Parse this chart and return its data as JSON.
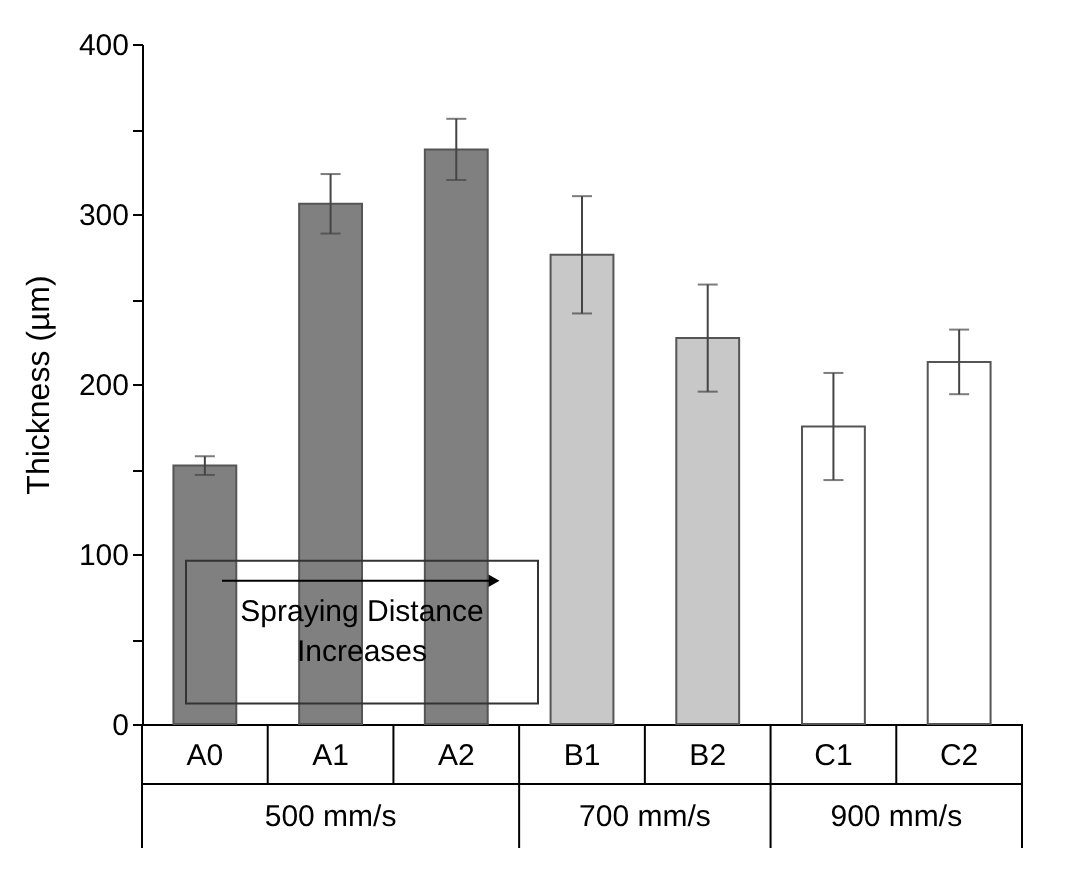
{
  "chart_data": {
    "type": "bar",
    "ylabel": "Thickness (µm)",
    "categories": [
      "A0",
      "A1",
      "A2",
      "B1",
      "B2",
      "C1",
      "C2"
    ],
    "values": [
      152,
      306,
      338,
      276,
      227,
      175,
      213
    ],
    "errors": [
      5.5,
      17.5,
      18,
      34.5,
      31.5,
      31.5,
      19
    ],
    "colors": [
      "#808080",
      "#808080",
      "#808080",
      "#c8c8c8",
      "#c8c8c8",
      "#ffffff",
      "#ffffff"
    ],
    "ylim": [
      0,
      400
    ],
    "yticks": [
      0,
      {
        "value": 50,
        "label": null
      },
      100,
      {
        "value": 150,
        "label": null
      },
      200,
      {
        "value": 250,
        "label": null
      },
      300,
      {
        "value": 350,
        "label": null
      },
      400
    ],
    "grid": false,
    "annotations": [
      "Spraying Distance Increases",
      "500 mm/s",
      "700 mm/s",
      "900 mm/s"
    ]
  }
}
